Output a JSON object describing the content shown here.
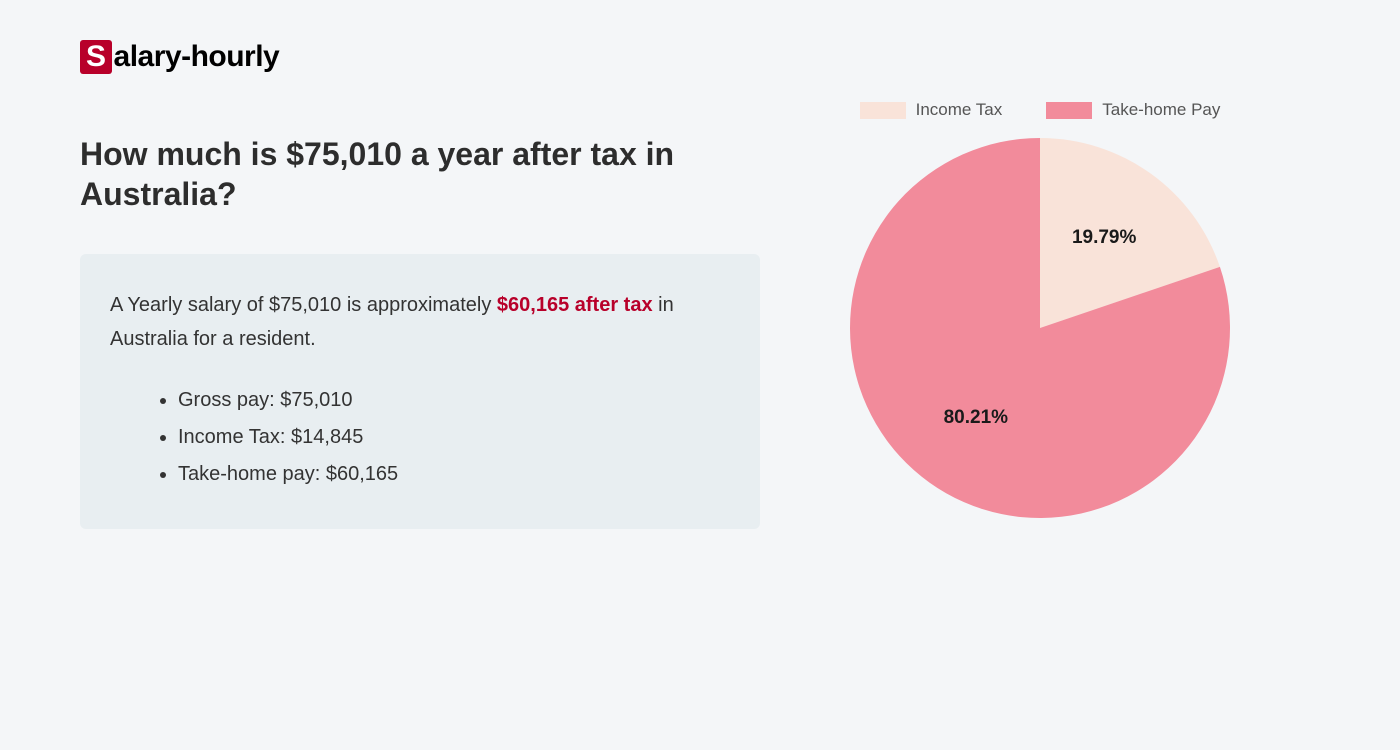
{
  "logo": {
    "prefix_letter": "S",
    "rest": "alary-hourly",
    "box_bg": "#b8002a",
    "box_fg": "#ffffff"
  },
  "heading": "How much is $75,010 a year after tax in Australia?",
  "info": {
    "box_bg": "#e8eef1",
    "sentence_pre": "A Yearly salary of $75,010 is approximately ",
    "highlight": "$60,165 after tax",
    "sentence_post": " in Australia for a resident.",
    "highlight_color": "#b8002a",
    "bullets": [
      "Gross pay: $75,010",
      "Income Tax: $14,845",
      "Take-home pay: $60,165"
    ]
  },
  "chart": {
    "type": "pie",
    "background_color": "#f4f6f8",
    "radius": 190,
    "slices": [
      {
        "label": "Income Tax",
        "value": 19.79,
        "pct_label": "19.79%",
        "color": "#f9e3d9"
      },
      {
        "label": "Take-home Pay",
        "value": 80.21,
        "pct_label": "80.21%",
        "color": "#f28b9b"
      }
    ],
    "legend_text_color": "#555555",
    "label_fontsize": 19,
    "label_color": "#1a1a1a",
    "start_angle_deg": -90
  }
}
